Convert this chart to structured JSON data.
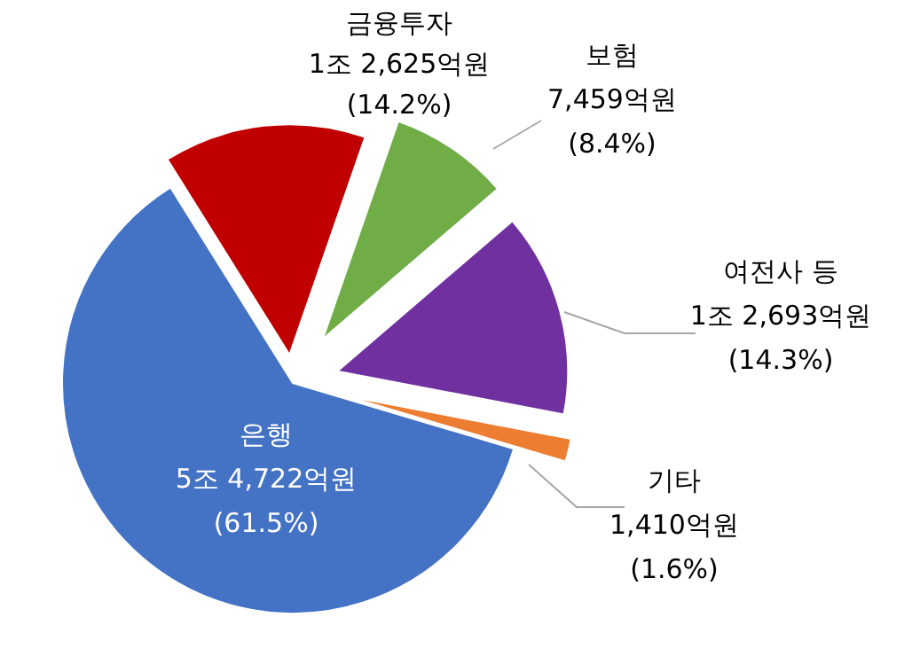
{
  "chart_data": {
    "type": "pie",
    "categories": [
      "금융투자",
      "보험",
      "여전사 등",
      "기타",
      "은행"
    ],
    "values": [
      14.2,
      8.4,
      14.3,
      1.6,
      61.5
    ],
    "colors": [
      "#c00000",
      "#70ad47",
      "#7030a0",
      "#ed7d31",
      "#4472c4"
    ],
    "value_labels": [
      "1조 2,625억원\n(14.2%)",
      "7,459억원\n(8.4%)",
      "1조 2,693억원\n(14.3%)",
      "1,410억원\n(1.6%)",
      "5조 4,722억원\n(61.5%)"
    ],
    "legend": false
  }
}
